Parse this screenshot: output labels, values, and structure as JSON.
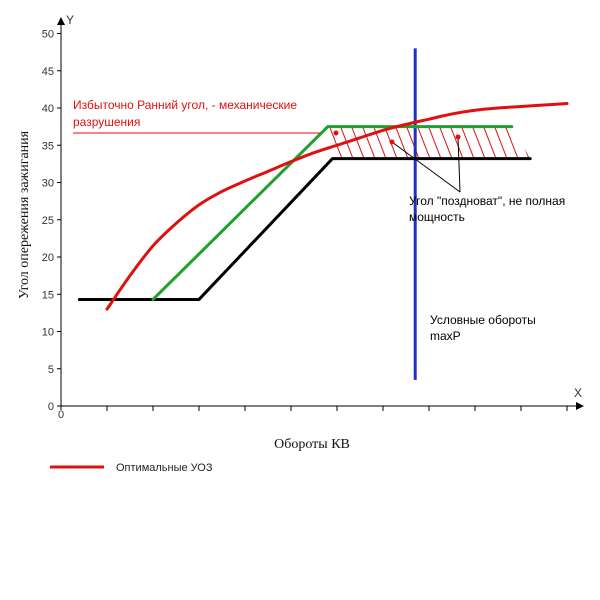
{
  "chart_data": {
    "type": "line",
    "xlabel": "Обороты КВ",
    "ylabel": "Угол опережения зажигания",
    "x_axis_letter": "X",
    "y_axis_letter": "Y",
    "x_origin_label": "0",
    "ylim": [
      0,
      50
    ],
    "yticks": [
      0,
      5,
      10,
      15,
      20,
      25,
      30,
      35,
      40,
      45,
      50
    ],
    "xlim": [
      0,
      11
    ],
    "xtick_count": 11,
    "grid": false,
    "legend_position": "bottom-left",
    "series": [
      {
        "name": "Оптимальные УОЗ",
        "color": "#e01010",
        "style": "curve",
        "x": [
          1,
          1.5,
          2,
          2.5,
          3,
          3.5,
          4,
          4.5,
          5,
          5.5,
          6,
          6.5,
          7,
          7.5,
          8,
          8.5,
          9,
          9.5,
          10,
          10.5,
          11
        ],
        "y": [
          13,
          17.5,
          21.5,
          24.5,
          27,
          28.8,
          30.2,
          31.5,
          32.8,
          34,
          35,
          36,
          37,
          37.8,
          38.5,
          39.2,
          39.7,
          40,
          40.2,
          40.4,
          40.6
        ]
      },
      {
        "color": "#20a030",
        "style": "polyline",
        "x": [
          2,
          5.8,
          9.8
        ],
        "y": [
          14.3,
          37.5,
          37.5
        ]
      },
      {
        "color": "#000000",
        "style": "polyline",
        "x": [
          0.4,
          3,
          5.9,
          10.2
        ],
        "y": [
          14.3,
          14.3,
          33.2,
          33.2
        ]
      }
    ],
    "reference_lines": [
      {
        "orientation": "vertical",
        "x": 7.7,
        "y_range": [
          3.5,
          48
        ],
        "color": "#2030c0"
      }
    ],
    "annotations": {
      "early": {
        "lines": [
          "Избыточно Ранний угол, - механические",
          "разрушения"
        ],
        "color": "#e01010"
      },
      "late": {
        "lines": [
          "Угол \"поздноват\", не полная",
          "мощность"
        ],
        "color": "#000000"
      },
      "maxp": {
        "lines": [
          "Условные обороты",
          "maxP"
        ],
        "color": "#000000"
      }
    }
  }
}
